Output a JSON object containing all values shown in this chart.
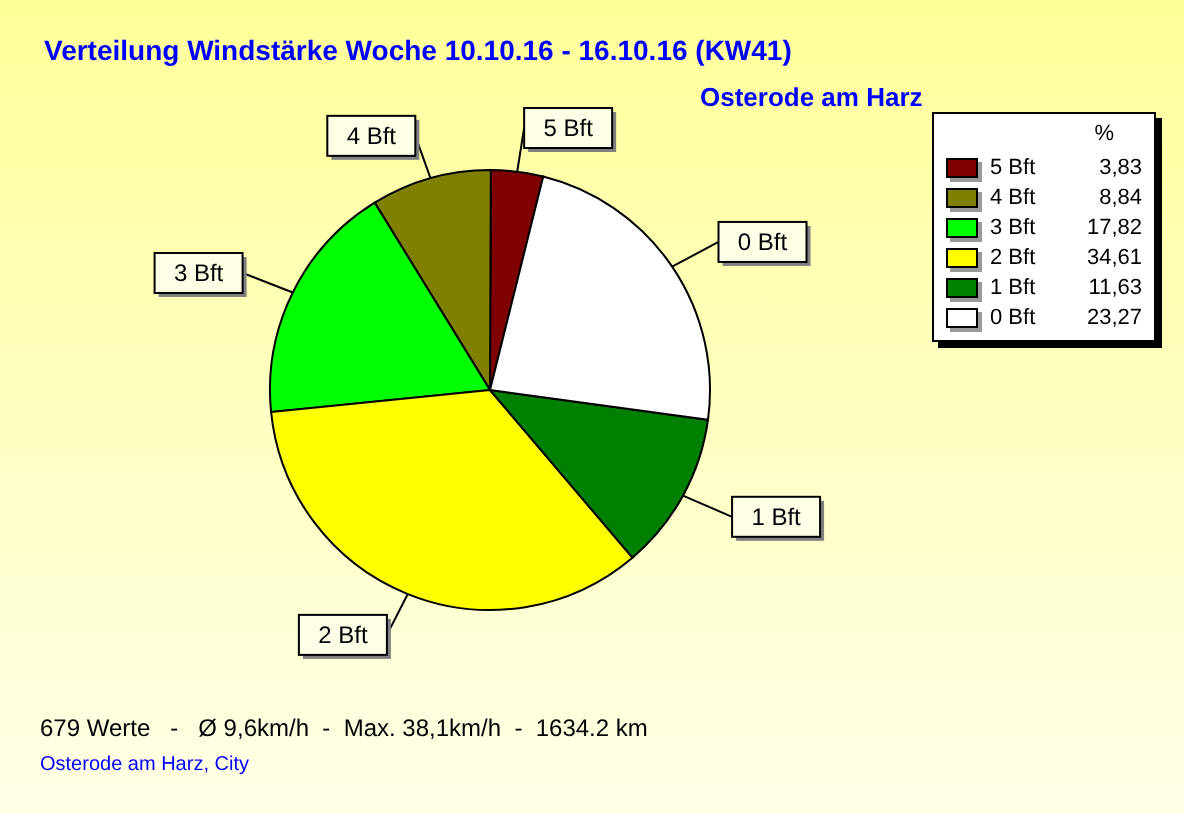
{
  "chart_data": {
    "type": "pie",
    "title": "Verteilung Windstärke  Woche 10.10.16 - 16.10.16 (KW41)",
    "subtitle": "Osterode am Harz",
    "categories": [
      "5 Bft",
      "4 Bft",
      "3 Bft",
      "2 Bft",
      "1 Bft",
      "0 Bft"
    ],
    "values": [
      3.83,
      8.84,
      17.82,
      34.61,
      11.63,
      23.27
    ],
    "value_labels": [
      "3,83",
      "8,84",
      "17,82",
      "34,61",
      "11,63",
      "23,27"
    ],
    "colors": [
      "#800000",
      "#808000",
      "#00ff00",
      "#ffff00",
      "#008000",
      "#ffffff"
    ],
    "legend": "top right",
    "legend_title": "%",
    "annotations": [
      "679 Werte   -   Ø 9,6km/h  -  Max. 38,1km/h  -  1634.2 km",
      "Osterode am Harz, City"
    ]
  }
}
